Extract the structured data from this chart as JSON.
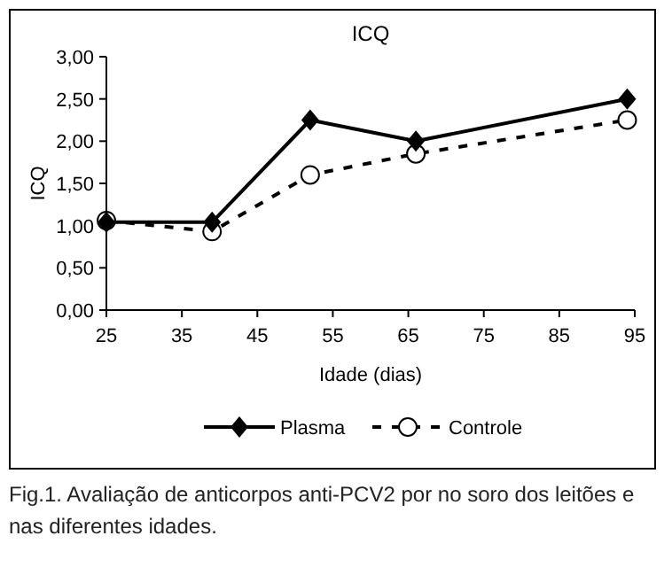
{
  "chart_data": {
    "type": "line",
    "title": "ICQ",
    "xlabel": "Idade (dias)",
    "ylabel": "ICQ",
    "xlim": [
      25,
      95
    ],
    "xticks": [
      25,
      35,
      45,
      55,
      65,
      75,
      85,
      95
    ],
    "ylim": [
      0,
      3
    ],
    "yticks": [
      {
        "value": 0,
        "label": "0,00"
      },
      {
        "value": 0.5,
        "label": "0,50"
      },
      {
        "value": 1,
        "label": "1,00"
      },
      {
        "value": 1.5,
        "label": "1,50"
      },
      {
        "value": 2,
        "label": "2,00"
      },
      {
        "value": 2.5,
        "label": "2,50"
      },
      {
        "value": 3,
        "label": "3,00"
      }
    ],
    "x": [
      25,
      39,
      52,
      66,
      94
    ],
    "series": [
      {
        "name": "Plasma",
        "color": "#000000",
        "values": [
          1.04,
          1.04,
          2.25,
          2.0,
          2.5
        ],
        "marker": "diamond",
        "line_style": "solid"
      },
      {
        "name": "Controle",
        "color": "#000000",
        "values": [
          1.06,
          0.93,
          1.6,
          1.85,
          2.25
        ],
        "marker": "circle",
        "line_style": "dashed"
      }
    ],
    "grid": false,
    "legend": "bottom",
    "annotations": [
      "Fig.1. Avaliação de anticorpos anti-PCV2 por no soro dos leitões e nas diferentes idades."
    ]
  }
}
